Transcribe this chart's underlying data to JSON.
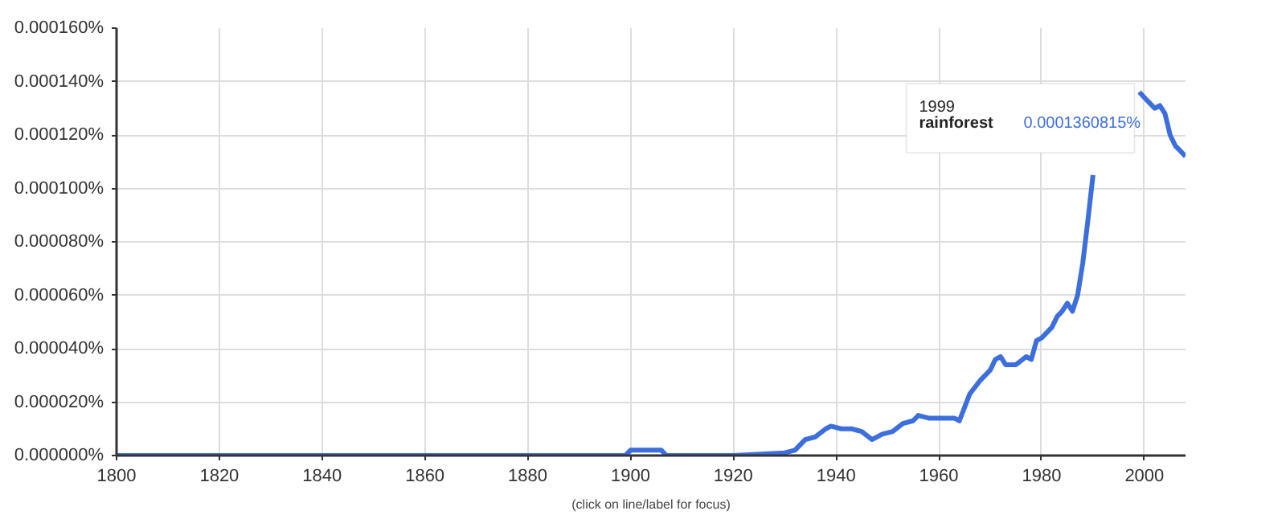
{
  "chart_data": {
    "type": "line",
    "x": [
      1800,
      1850,
      1899,
      1900,
      1906,
      1907,
      1920,
      1930,
      1932,
      1934,
      1936,
      1938,
      1939,
      1941,
      1943,
      1945,
      1947,
      1949,
      1951,
      1953,
      1955,
      1956,
      1958,
      1960,
      1963,
      1964,
      1966,
      1968,
      1970,
      1971,
      1972,
      1973,
      1975,
      1977,
      1978,
      1979,
      1980,
      1982,
      1983,
      1984,
      1985,
      1986,
      1987,
      1988,
      1989,
      1990,
      1991,
      1992,
      1995,
      1998,
      1999,
      2000,
      2001,
      2002,
      2003,
      2004,
      2005,
      2006,
      2007,
      2008
    ],
    "series": [
      {
        "name": "rainforest",
        "color": "#3d6fdc",
        "values": [
          0,
          0,
          0,
          2e-06,
          2e-06,
          0,
          0,
          1e-06,
          2e-06,
          6e-06,
          7e-06,
          1e-05,
          1.1e-05,
          1e-05,
          1e-05,
          9e-06,
          6e-06,
          8e-06,
          9e-06,
          1.2e-05,
          1.3e-05,
          1.5e-05,
          1.4e-05,
          1.4e-05,
          1.4e-05,
          1.3e-05,
          2.3e-05,
          2.8e-05,
          3.2e-05,
          3.6e-05,
          3.7e-05,
          3.4e-05,
          3.4e-05,
          3.7e-05,
          3.6e-05,
          4.3e-05,
          4.4e-05,
          4.8e-05,
          5.2e-05,
          5.4e-05,
          5.7e-05,
          5.4e-05,
          6e-05,
          7.2e-05,
          8.8e-05,
          0.000105,
          null,
          null,
          null,
          null,
          0.0001360815,
          0.000134,
          0.000132,
          0.00013,
          0.000131,
          0.000128,
          0.00012,
          0.000116,
          0.000114,
          0.000112
        ]
      }
    ],
    "xlim": [
      1800,
      2008
    ],
    "ylim": [
      0,
      0.00016
    ],
    "xticks": [
      1800,
      1820,
      1840,
      1860,
      1880,
      1900,
      1920,
      1940,
      1960,
      1980,
      2000
    ],
    "yticks": [
      {
        "value": 0,
        "label": "0.000000%"
      },
      {
        "value": 2e-05,
        "label": "0.000020%"
      },
      {
        "value": 4e-05,
        "label": "0.000040%"
      },
      {
        "value": 6e-05,
        "label": "0.000060%"
      },
      {
        "value": 8e-05,
        "label": "0.000080%"
      },
      {
        "value": 0.0001,
        "label": "0.000100%"
      },
      {
        "value": 0.00012,
        "label": "0.000120%"
      },
      {
        "value": 0.00014,
        "label": "0.000140%"
      },
      {
        "value": 0.00016,
        "label": "0.000160%"
      }
    ],
    "grid": true,
    "marker": "none",
    "line_style": "solid",
    "annotations": [
      "(click on line/label for focus)",
      "1999",
      "0.0001360815%"
    ]
  }
}
